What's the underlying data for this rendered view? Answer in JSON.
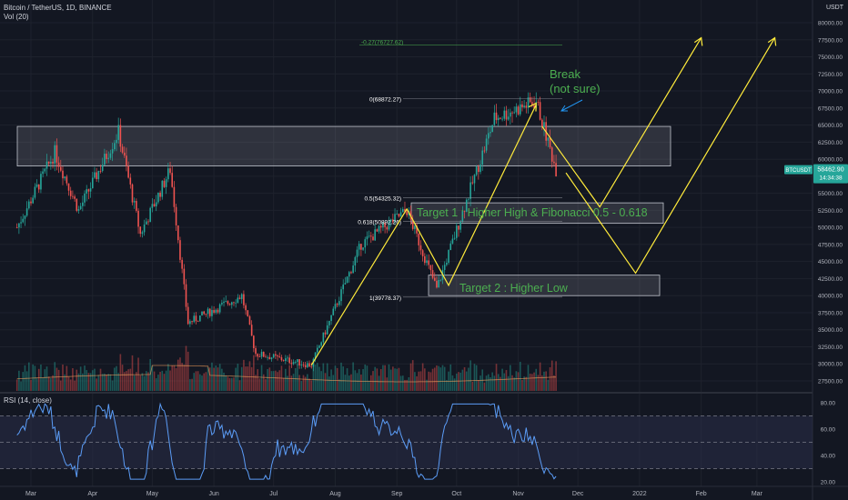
{
  "header": {
    "symbol": "Bitcoin / TetherUS, 1D, BINANCE",
    "volume_indicator": "Vol (20)",
    "rsi_indicator": "RSI (14, close)",
    "currency": "USDT"
  },
  "price_badge": {
    "ticker": "BTCUSDT",
    "price": "58462.90",
    "countdown": "14:34:38"
  },
  "colors": {
    "background": "#131722",
    "up": "#26a69a",
    "down": "#ef5350",
    "annotation": "#4caf50",
    "projection": "#ffeb3b",
    "arrow_blue": "#2196f3",
    "rsi_line": "#5b9cf6",
    "rsi_band": "#2a2e49"
  },
  "chart_data": {
    "type": "candlestick",
    "symbol": "BTCUSDT",
    "timeframe": "1D",
    "exchange": "BINANCE",
    "x_labels": [
      "Mar",
      "Apr",
      "May",
      "Jun",
      "Jul",
      "Aug",
      "Sep",
      "Oct",
      "Nov",
      "Dec",
      "2022",
      "Feb",
      "Mar"
    ],
    "y_ticks": [
      "80000.00",
      "77500.00",
      "75000.00",
      "72500.00",
      "70000.00",
      "67500.00",
      "65000.00",
      "62500.00",
      "60000.00",
      "57500.00",
      "55000.00",
      "52500.00",
      "50000.00",
      "47500.00",
      "45000.00",
      "42500.00",
      "40000.00",
      "37500.00",
      "35000.00",
      "32500.00",
      "30000.00",
      "27500.00"
    ],
    "rsi_ticks": [
      "80.00",
      "60.00",
      "40.00",
      "20.00"
    ],
    "price_path": [
      {
        "x": "2021-02-22",
        "price": 50000
      },
      {
        "x": "2021-03-13",
        "price": 61000
      },
      {
        "x": "2021-03-25",
        "price": 52500
      },
      {
        "x": "2021-04-14",
        "price": 64000
      },
      {
        "x": "2021-04-25",
        "price": 49000
      },
      {
        "x": "2021-05-10",
        "price": 58500
      },
      {
        "x": "2021-05-19",
        "price": 36000
      },
      {
        "x": "2021-06-15",
        "price": 40000
      },
      {
        "x": "2021-06-22",
        "price": 31500
      },
      {
        "x": "2021-07-20",
        "price": 29800
      },
      {
        "x": "2021-08-14",
        "price": 47500
      },
      {
        "x": "2021-09-06",
        "price": 52500
      },
      {
        "x": "2021-09-21",
        "price": 41000
      },
      {
        "x": "2021-10-20",
        "price": 66000
      },
      {
        "x": "2021-11-10",
        "price": 68500
      },
      {
        "x": "2021-11-20",
        "price": 58462.9
      }
    ],
    "fibonacci": [
      {
        "ratio": "-0.27",
        "price": 76727.62,
        "label": "-0.27(76727.62)"
      },
      {
        "ratio": "0",
        "price": 68872.27,
        "label": "0(68872.27)"
      },
      {
        "ratio": "0.5",
        "price": 54325.32,
        "label": "0.5(54325.32)"
      },
      {
        "ratio": "0.618",
        "price": 50892.26,
        "label": "0.618(50892.26)"
      },
      {
        "ratio": "1",
        "price": 39778.37,
        "label": "1(39778.37)"
      }
    ],
    "zones": [
      {
        "name": "resistance",
        "from": 59000,
        "to": 64800
      },
      {
        "name": "target-2",
        "from": 40000,
        "to": 43000
      }
    ],
    "annotations": {
      "break": [
        "Break",
        "(not sure)"
      ],
      "target1": "Target 1 : Higher High & Fibonacci 0.5 - 0.618",
      "target2": "Target 2 : Higher Low"
    },
    "rsi": {
      "overbought": 70,
      "oversold": 30,
      "ylim": [
        20,
        80
      ]
    },
    "ylim": [
      27000,
      81500
    ]
  }
}
